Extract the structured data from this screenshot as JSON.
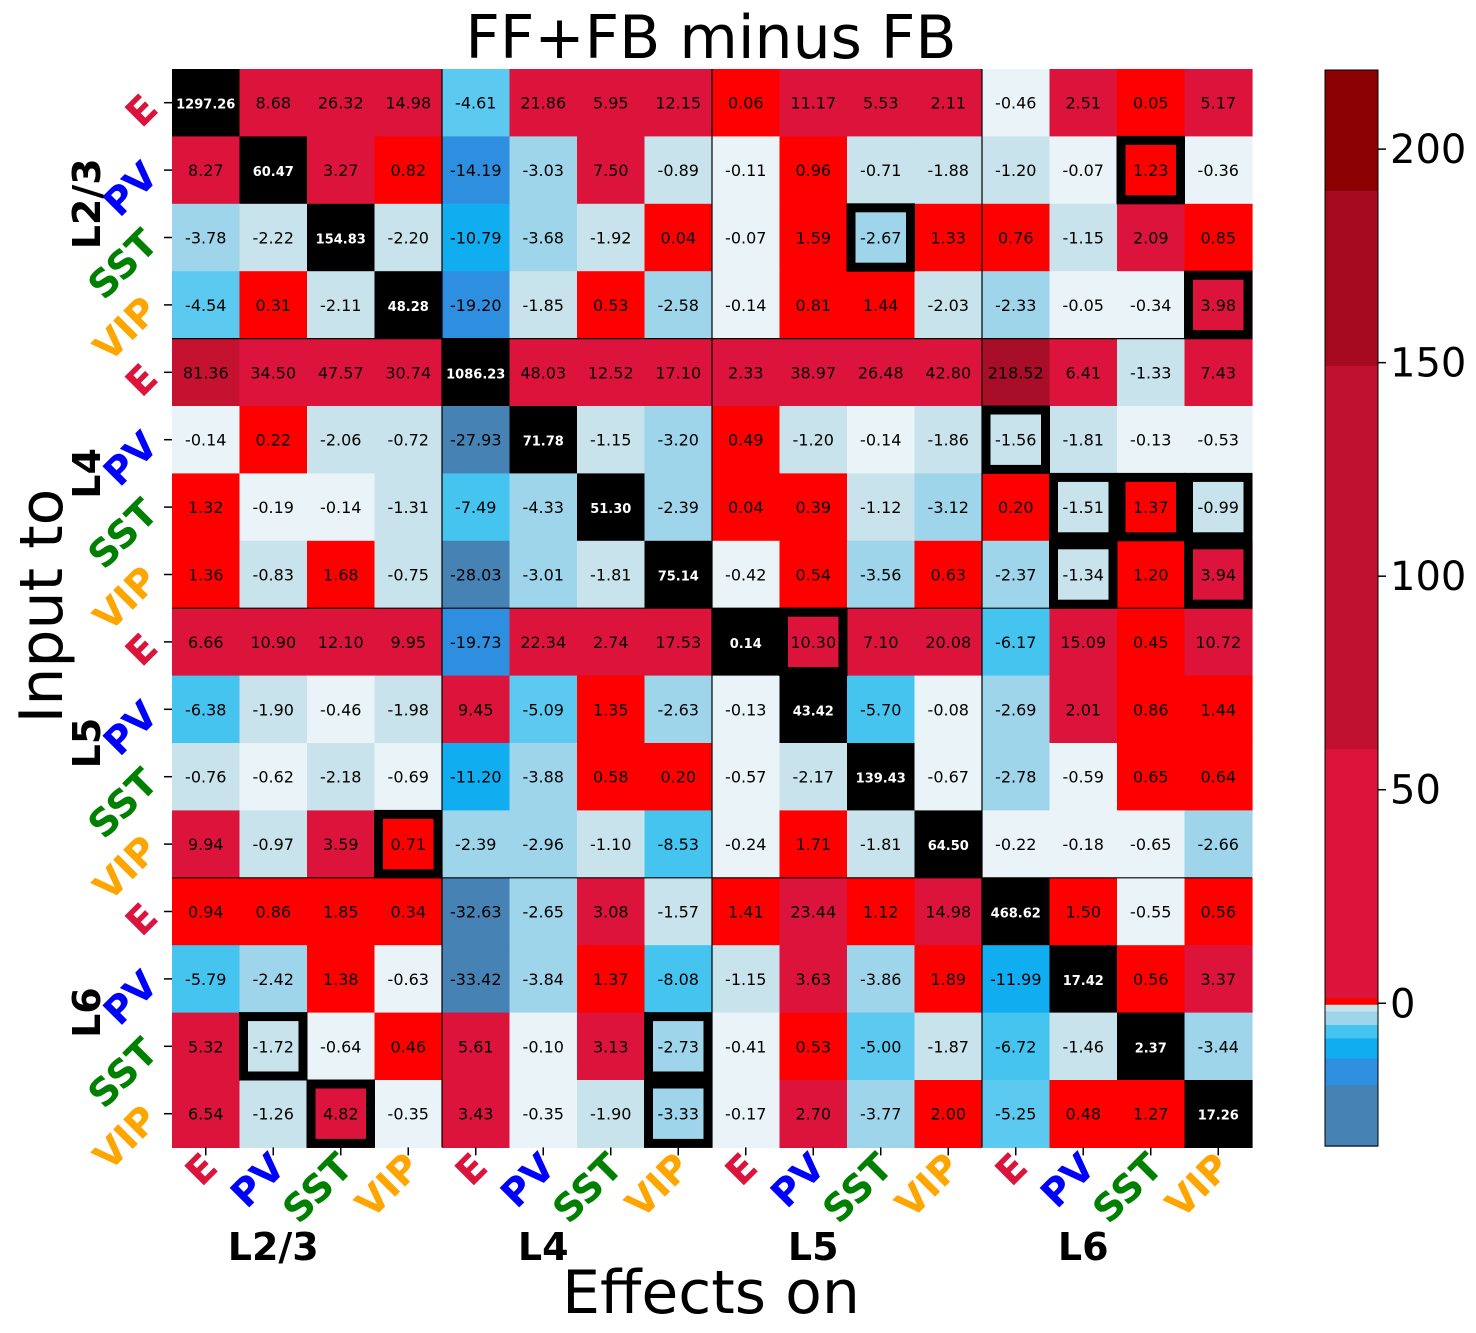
{
  "chart_data": {
    "type": "heatmap",
    "title": "FF+FB minus FB",
    "xlabel": "Effects on",
    "ylabel": "Input to",
    "layers": [
      "L2/3",
      "L4",
      "L5",
      "L6"
    ],
    "cell_types": [
      "E",
      "PV",
      "SST",
      "VIP"
    ],
    "cell_type_colors": {
      "E": "#dc143c",
      "PV": "#0000ff",
      "SST": "#008000",
      "VIP": "#ffa500"
    },
    "rows": [
      "L2/3 E",
      "L2/3 PV",
      "L2/3 SST",
      "L2/3 VIP",
      "L4 E",
      "L4 PV",
      "L4 SST",
      "L4 VIP",
      "L5 E",
      "L5 PV",
      "L5 SST",
      "L5 VIP",
      "L6 E",
      "L6 PV",
      "L6 SST",
      "L6 VIP"
    ],
    "cols": [
      "L2/3 E",
      "L2/3 PV",
      "L2/3 SST",
      "L2/3 VIP",
      "L4 E",
      "L4 PV",
      "L4 SST",
      "L4 VIP",
      "L5 E",
      "L5 PV",
      "L5 SST",
      "L5 VIP",
      "L6 E",
      "L6 PV",
      "L6 SST",
      "L6 VIP"
    ],
    "values": [
      [
        "1297.26",
        "8.68",
        "26.32",
        "14.98",
        "-4.61",
        "21.86",
        "5.95",
        "12.15",
        "0.06",
        "11.17",
        "5.53",
        "2.11",
        "-0.46",
        "2.51",
        "0.05",
        "5.17"
      ],
      [
        "8.27",
        "60.47",
        "3.27",
        "0.82",
        "-14.19",
        "-3.03",
        "7.50",
        "-0.89",
        "-0.11",
        "0.96",
        "-0.71",
        "-1.88",
        "-1.20",
        "-0.07",
        "1.23",
        "-0.36"
      ],
      [
        "-3.78",
        "-2.22",
        "154.83",
        "-2.20",
        "-10.79",
        "-3.68",
        "-1.92",
        "0.04",
        "-0.07",
        "1.59",
        "-2.67",
        "1.33",
        "0.76",
        "-1.15",
        "2.09",
        "0.85"
      ],
      [
        "-4.54",
        "0.31",
        "-2.11",
        "48.28",
        "-19.20",
        "-1.85",
        "0.53",
        "-2.58",
        "-0.14",
        "0.81",
        "1.44",
        "-2.03",
        "-2.33",
        "-0.05",
        "-0.34",
        "3.98"
      ],
      [
        "81.36",
        "34.50",
        "47.57",
        "30.74",
        "1086.23",
        "48.03",
        "12.52",
        "17.10",
        "2.33",
        "38.97",
        "26.48",
        "42.80",
        "218.52",
        "6.41",
        "-1.33",
        "7.43"
      ],
      [
        "-0.14",
        "0.22",
        "-2.06",
        "-0.72",
        "-27.93",
        "71.78",
        "-1.15",
        "-3.20",
        "0.49",
        "-1.20",
        "-0.14",
        "-1.86",
        "-1.56",
        "-1.81",
        "-0.13",
        "-0.53"
      ],
      [
        "1.32",
        "-0.19",
        "-0.14",
        "-1.31",
        "-7.49",
        "-4.33",
        "51.30",
        "-2.39",
        "0.04",
        "0.39",
        "-1.12",
        "-3.12",
        "0.20",
        "-1.51",
        "1.37",
        "-0.99"
      ],
      [
        "1.36",
        "-0.83",
        "1.68",
        "-0.75",
        "-28.03",
        "-3.01",
        "-1.81",
        "75.14",
        "-0.42",
        "0.54",
        "-3.56",
        "0.63",
        "-2.37",
        "-1.34",
        "1.20",
        "3.94"
      ],
      [
        "6.66",
        "10.90",
        "12.10",
        "9.95",
        "-19.73",
        "22.34",
        "2.74",
        "17.53",
        "0.14",
        "10.30",
        "7.10",
        "20.08",
        "-6.17",
        "15.09",
        "0.45",
        "10.72"
      ],
      [
        "-6.38",
        "-1.90",
        "-0.46",
        "-1.98",
        "9.45",
        "-5.09",
        "1.35",
        "-2.63",
        "-0.13",
        "43.42",
        "-5.70",
        "-0.08",
        "-2.69",
        "2.01",
        "0.86",
        "1.44"
      ],
      [
        "-0.76",
        "-0.62",
        "-2.18",
        "-0.69",
        "-11.20",
        "-3.88",
        "0.58",
        "0.20",
        "-0.57",
        "-2.17",
        "139.43",
        "-0.67",
        "-2.78",
        "-0.59",
        "0.65",
        "0.64"
      ],
      [
        "9.94",
        "-0.97",
        "3.59",
        "0.71",
        "-2.39",
        "-2.96",
        "-1.10",
        "-8.53",
        "-0.24",
        "1.71",
        "-1.81",
        "64.50",
        "-0.22",
        "-0.18",
        "-0.65",
        "-2.66"
      ],
      [
        "0.94",
        "0.86",
        "1.85",
        "0.34",
        "-32.63",
        "-2.65",
        "3.08",
        "-1.57",
        "1.41",
        "23.44",
        "1.12",
        "14.98",
        "468.62",
        "1.50",
        "-0.55",
        "0.56"
      ],
      [
        "-5.79",
        "-2.42",
        "1.38",
        "-0.63",
        "-33.42",
        "-3.84",
        "1.37",
        "-8.08",
        "-1.15",
        "3.63",
        "-3.86",
        "1.89",
        "-11.99",
        "17.42",
        "0.56",
        "3.37"
      ],
      [
        "5.32",
        "-1.72",
        "-0.64",
        "0.46",
        "5.61",
        "-0.10",
        "3.13",
        "-2.73",
        "-0.41",
        "0.53",
        "-5.00",
        "-1.87",
        "-6.72",
        "-1.46",
        "2.37",
        "-3.44"
      ],
      [
        "6.54",
        "-1.26",
        "4.82",
        "-0.35",
        "3.43",
        "-0.35",
        "-1.90",
        "-3.33",
        "-0.17",
        "2.70",
        "-3.77",
        "2.00",
        "-5.25",
        "0.48",
        "1.27",
        "17.26"
      ]
    ],
    "highlighted_cells": [
      [
        1,
        14
      ],
      [
        2,
        10
      ],
      [
        3,
        15
      ],
      [
        5,
        12
      ],
      [
        6,
        13
      ],
      [
        6,
        14
      ],
      [
        6,
        15
      ],
      [
        7,
        13
      ],
      [
        7,
        15
      ],
      [
        8,
        9
      ],
      [
        11,
        3
      ],
      [
        14,
        1
      ],
      [
        14,
        7
      ],
      [
        15,
        2
      ],
      [
        15,
        7
      ]
    ],
    "diagonal_color": "#000000",
    "colorbar": {
      "min": -33.42,
      "max": 218.52,
      "ticks": [
        "0",
        "50",
        "100",
        "150",
        "200"
      ],
      "tick_values": [
        0,
        50,
        100,
        150,
        200
      ],
      "colors": {
        "strong_negative": "#4682b4",
        "negative": "#00bfff",
        "weak_negative": "#eaf4f8",
        "zero": "#ff0000",
        "positive": "#dc143c",
        "high": "#8b0000"
      }
    },
    "grid": "layer separators only",
    "legend": "colorbar right"
  }
}
